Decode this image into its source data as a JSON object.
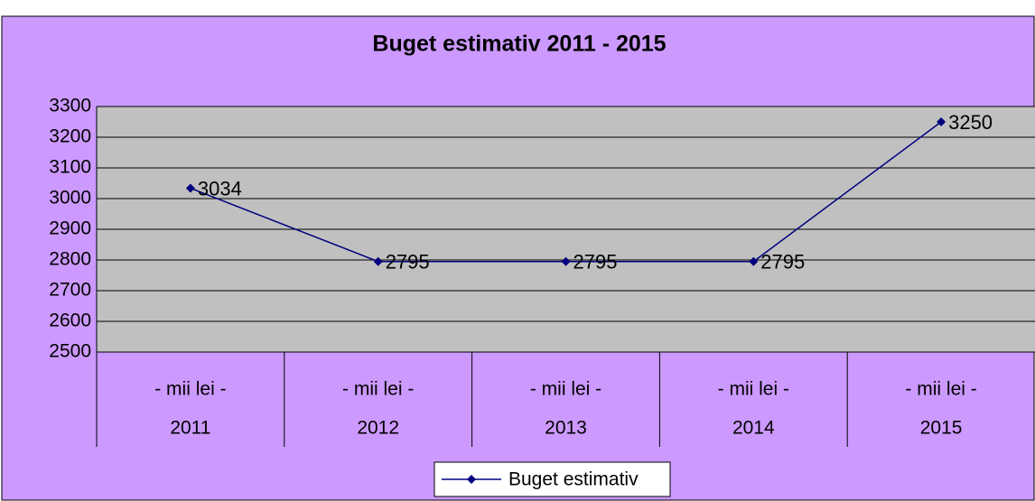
{
  "chart_data": {
    "type": "line",
    "title": "Buget estimativ 2011 - 2015",
    "categories": [
      "2011",
      "2012",
      "2013",
      "2014",
      "2015"
    ],
    "category_sublabels": [
      "- mii lei -",
      "- mii lei -",
      "- mii lei -",
      "- mii lei -",
      "- mii lei -"
    ],
    "series": [
      {
        "name": "Buget estimativ",
        "color": "#000080",
        "values": [
          3034,
          2795,
          2795,
          2795,
          3250
        ]
      }
    ],
    "ylim": [
      2500,
      3300
    ],
    "yticks": [
      2500,
      2600,
      2700,
      2800,
      2900,
      3000,
      3100,
      3200,
      3300
    ],
    "grid": true,
    "legend": "bottom"
  }
}
